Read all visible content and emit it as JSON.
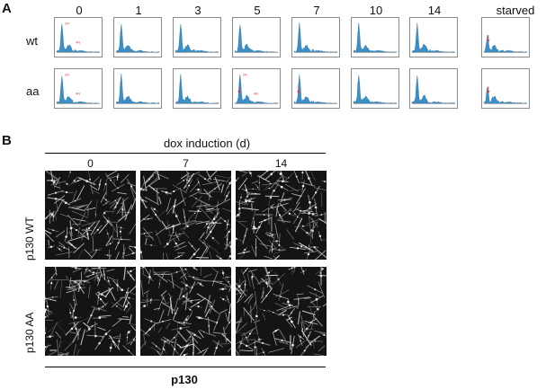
{
  "figure": {
    "panel_a_label": "A",
    "panel_b_label": "B",
    "panel_a": {
      "columns": [
        "0",
        "1",
        "3",
        "5",
        "7",
        "10",
        "14",
        "starved"
      ],
      "rows": [
        "wt",
        "aa"
      ],
      "histogram_color": "#3b8fc6",
      "annotation_color": "#e0383a",
      "annotations": {
        "wt_0": [
          "2N",
          "4N"
        ],
        "aa_0": [
          "2N",
          "4N"
        ],
        "aa_5": [
          "2N",
          "4N"
        ]
      }
    },
    "panel_b": {
      "title": "dox induction (d)",
      "columns": [
        "0",
        "7",
        "14"
      ],
      "rows": [
        "p130 WT",
        "p130 AA"
      ],
      "footer": "p130"
    }
  }
}
